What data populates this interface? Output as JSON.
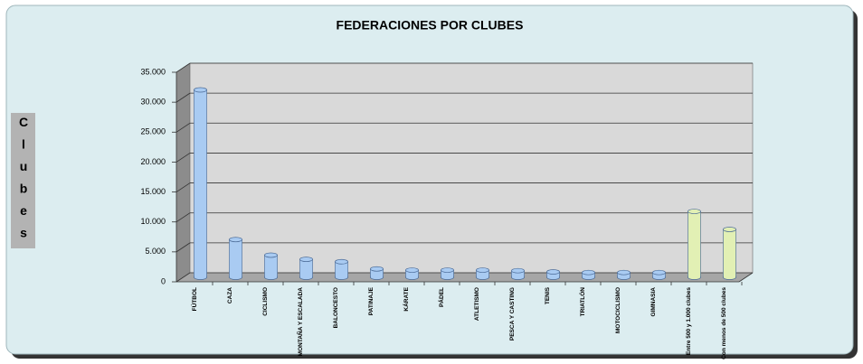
{
  "chart_data": {
    "type": "bar",
    "title": "FEDERACIONES POR CLUBES",
    "ylabel": "Clubes",
    "categories": [
      "FÚTBOL",
      "CAZA",
      "CICLISMO",
      "MONTAÑA Y ESCALADA",
      "BALONCESTO",
      "PATINAJE",
      "KÁRATE",
      "PÁDEL",
      "ATLETISMO",
      "PESCA Y CASTING",
      "TENIS",
      "TRIATLÓN",
      "MOTOCICLISMO",
      "GIMNASIA",
      "Entre 500 y 1.000 clubes",
      "Con menos de 500 clubes"
    ],
    "values": [
      31300,
      6300,
      3700,
      3000,
      2600,
      1400,
      1200,
      1200,
      1200,
      1100,
      900,
      800,
      800,
      800,
      11000,
      8000
    ],
    "colors": [
      "#a9cbf2",
      "#a9cbf2",
      "#a9cbf2",
      "#a9cbf2",
      "#a9cbf2",
      "#a9cbf2",
      "#a9cbf2",
      "#a9cbf2",
      "#a9cbf2",
      "#a9cbf2",
      "#a9cbf2",
      "#a9cbf2",
      "#a9cbf2",
      "#a9cbf2",
      "#e2f0b4",
      "#e2f0b4"
    ],
    "ylim": [
      0,
      35000
    ],
    "yticks": [
      0,
      {
        "value": 5000,
        "label": "5.000"
      },
      {
        "value": 10000,
        "label": "10.000"
      },
      {
        "value": 15000,
        "label": "15.000"
      },
      {
        "value": 20000,
        "label": "20.000"
      },
      {
        "value": 25000,
        "label": "25.000"
      },
      {
        "value": 30000,
        "label": "30.000"
      },
      {
        "value": 35000,
        "label": "35.000"
      }
    ],
    "grid": true
  }
}
